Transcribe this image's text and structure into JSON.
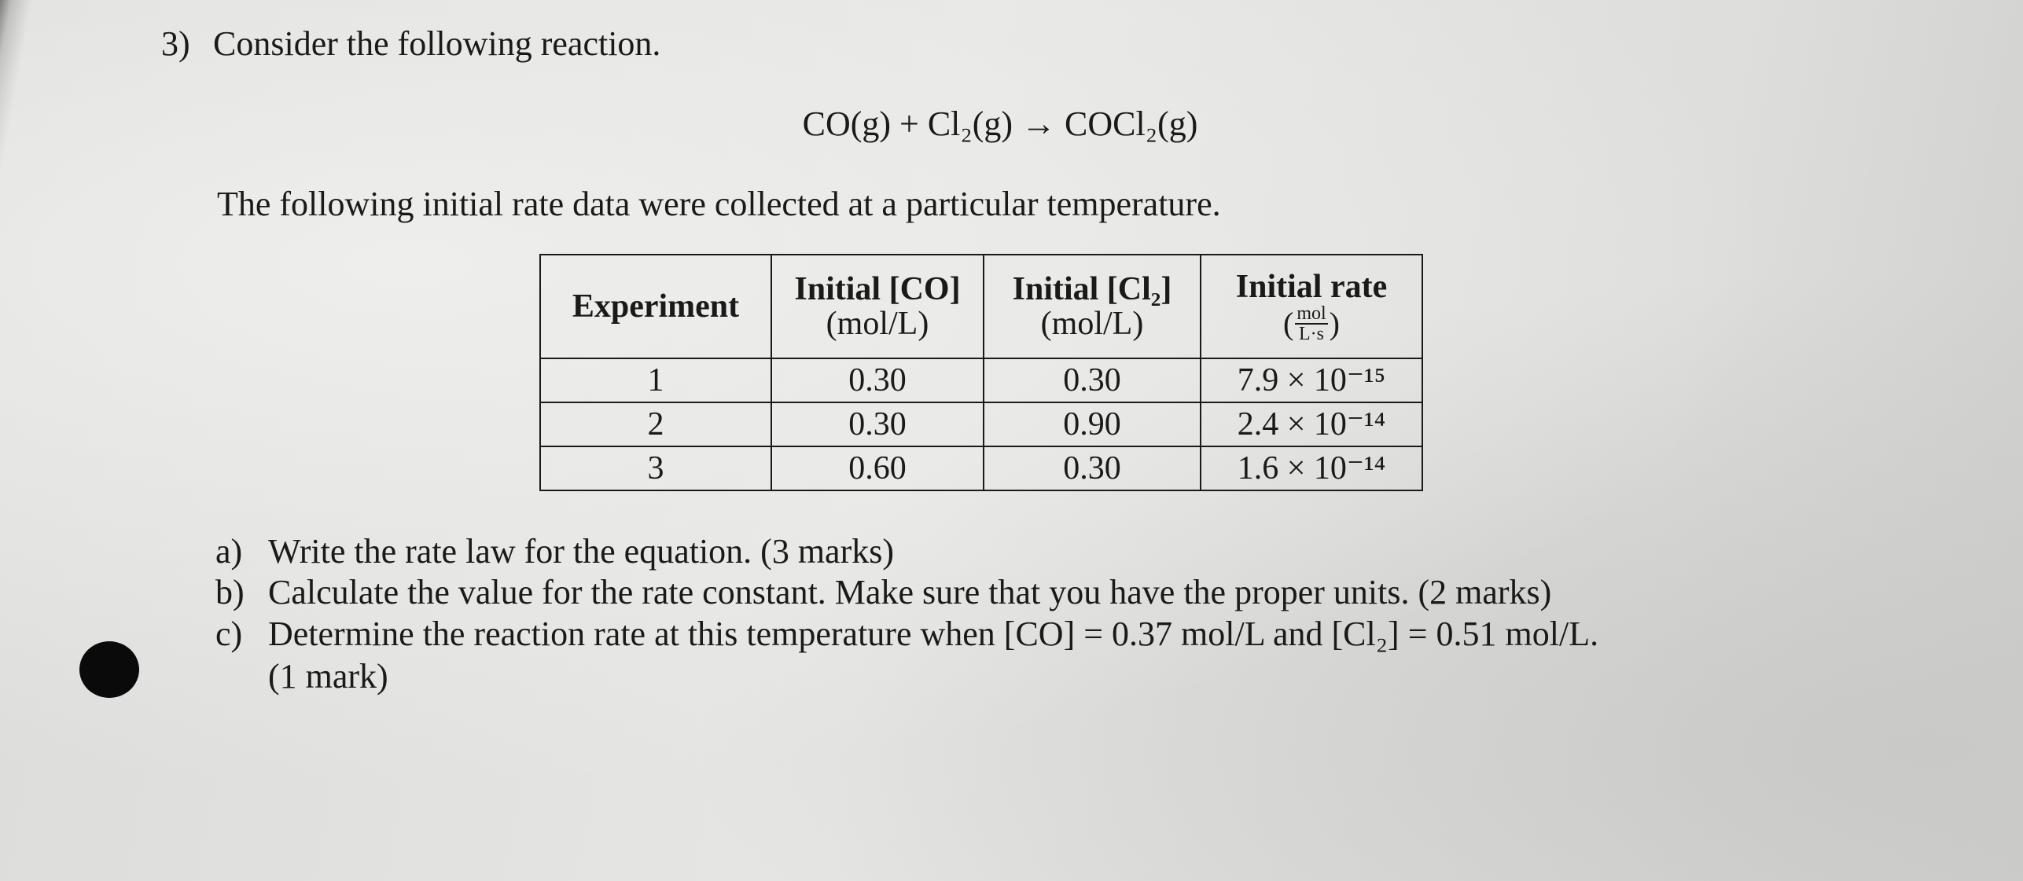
{
  "question": {
    "number": "3)",
    "intro": "Consider the following reaction.",
    "equation": "CO(g) + Cl₂(g) → COCl₂(g)",
    "statement": "The following initial rate data were collected at a particular temperature.",
    "table": {
      "headers": [
        {
          "line1": "Experiment"
        },
        {
          "line1": "Initial [CO]",
          "line2": "(mol/L)"
        },
        {
          "line1": "Initial [Cl₂]",
          "line2": "(mol/L)"
        },
        {
          "line1": "Initial rate",
          "unit_numerator": "mol",
          "unit_denominator": "L·s"
        }
      ],
      "rows": [
        [
          "1",
          "0.30",
          "0.30",
          "7.9 × 10⁻¹⁵"
        ],
        [
          "2",
          "0.30",
          "0.90",
          "2.4 × 10⁻¹⁴"
        ],
        [
          "3",
          "0.60",
          "0.30",
          "1.6 × 10⁻¹⁴"
        ]
      ]
    },
    "parts": [
      {
        "label": "a)",
        "text": "Write the rate law for the equation. (3 marks)"
      },
      {
        "label": "b)",
        "text": "Calculate the value for the rate constant.  Make sure that you have the proper units. (2 marks)"
      },
      {
        "label": "c)",
        "text": "Determine the reaction rate at this temperature when [CO] = 0.37 mol/L and [Cl₂] = 0.51 mol/L.",
        "text_line2": "(1 mark)"
      }
    ]
  }
}
